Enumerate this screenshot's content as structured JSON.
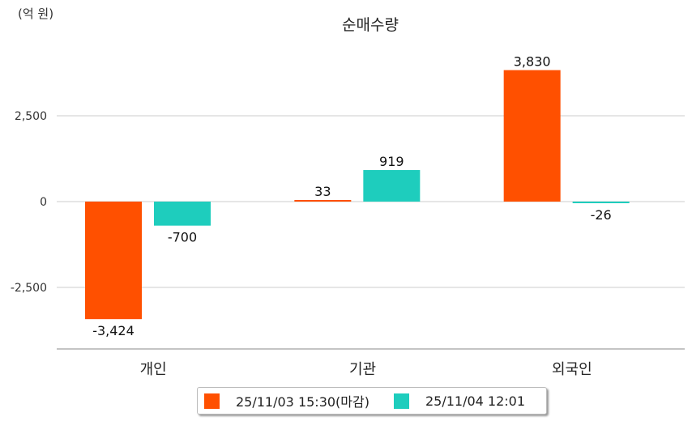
{
  "chart_data": {
    "type": "bar",
    "title": "순매수량",
    "unit_label": "(억 원)",
    "categories": [
      "개인",
      "기관",
      "외국인"
    ],
    "series": [
      {
        "name": "25/11/03 15:30(마감)",
        "color": "#ff5000",
        "values": [
          -3424,
          33,
          3830
        ],
        "labels": [
          "-3,424",
          "33",
          "3,830"
        ]
      },
      {
        "name": "25/11/04 12:01",
        "color": "#1ecdbd",
        "values": [
          -700,
          919,
          -26
        ],
        "labels": [
          "-700",
          "919",
          "-26"
        ]
      }
    ],
    "yticks": [
      2500,
      0,
      -2500
    ],
    "ytick_labels": [
      "2,500",
      "0",
      "-2,500"
    ],
    "ylim": [
      -4300,
      4930
    ],
    "grid": true,
    "legend_position": "bottom"
  }
}
